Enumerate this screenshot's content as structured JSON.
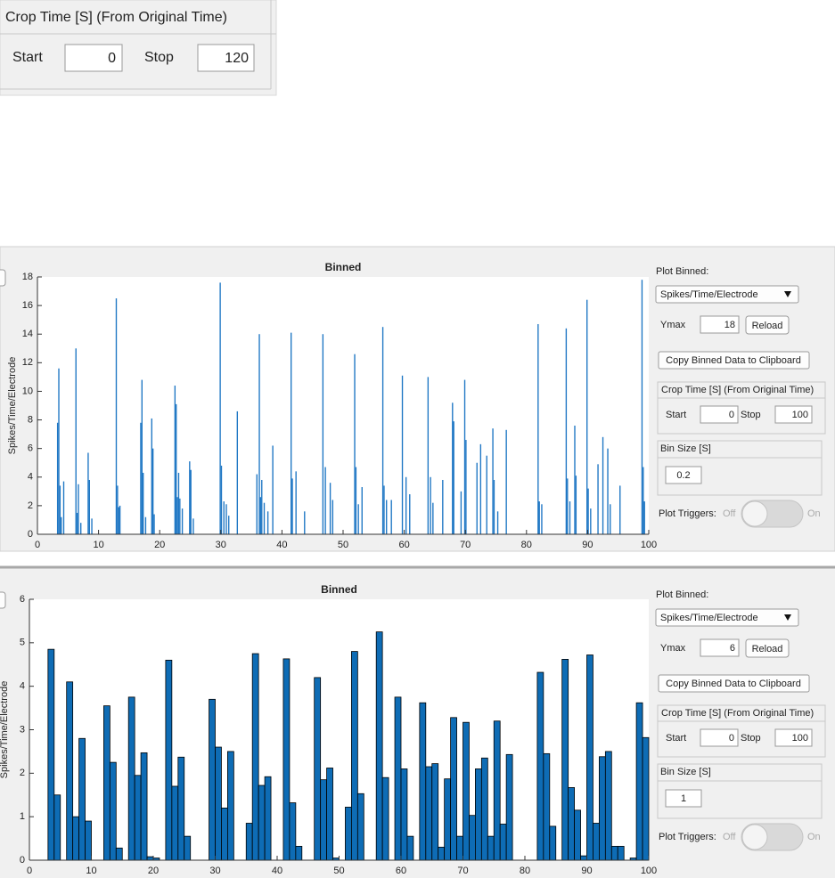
{
  "crop_panel": {
    "title": "Crop Time [S] (From Original Time)",
    "start_label": "Start",
    "start": 0,
    "stop_label": "Stop",
    "stop": 120
  },
  "chart_data": [
    {
      "type": "bar",
      "title": "Binned",
      "y_label": "Spikes/Time/Electrode",
      "color": "#1f77c4",
      "edgecolor": null,
      "x": [
        3.2,
        3.4,
        3.6,
        3.8,
        4.2,
        6.2,
        6.4,
        6.6,
        7.0,
        8.2,
        8.4,
        8.8,
        12.8,
        13.0,
        13.2,
        13.4,
        16.8,
        17.0,
        17.2,
        17.6,
        18.6,
        18.8,
        19.0,
        22.4,
        22.6,
        22.8,
        23.0,
        23.2,
        23.6,
        24.8,
        25.0,
        25.4,
        29.8,
        30.0,
        30.4,
        30.8,
        31.2,
        32.6,
        35.8,
        36.2,
        36.4,
        36.6,
        37.0,
        37.6,
        38.4,
        41.4,
        41.6,
        42.2,
        43.6,
        46.6,
        47.0,
        47.8,
        48.2,
        51.8,
        52.0,
        52.4,
        53.0,
        56.4,
        56.6,
        57.0,
        57.8,
        59.6,
        60.2,
        60.8,
        63.8,
        64.2,
        64.6,
        66.2,
        67.8,
        68.0,
        69.2,
        69.8,
        70.0,
        71.8,
        72.4,
        73.4,
        74.4,
        74.6,
        75.2,
        76.6,
        81.8,
        82.0,
        82.4,
        86.4,
        86.6,
        87.0,
        87.8,
        88.0,
        89.8,
        90.0,
        90.4,
        91.6,
        92.4,
        93.2,
        93.6,
        95.2,
        98.8,
        99.0,
        99.2
      ],
      "values": [
        7.8,
        11.6,
        3.4,
        1.2,
        3.7,
        13,
        1.5,
        3.5,
        0.8,
        5.7,
        3.8,
        1.1,
        16.5,
        3.4,
        1.9,
        2,
        7.8,
        10.8,
        4.3,
        1.2,
        8.1,
        6,
        1.4,
        10.4,
        9.1,
        2.6,
        4.3,
        2.5,
        1.8,
        5.1,
        4.5,
        1.1,
        17.6,
        4.8,
        2.3,
        2.1,
        1.3,
        8.6,
        4.2,
        14,
        2.6,
        3.8,
        2.2,
        1.6,
        6.2,
        14.1,
        3.9,
        4.4,
        1.6,
        14,
        4.7,
        3.6,
        2.4,
        12.6,
        4.7,
        2.1,
        3.3,
        14.5,
        3.4,
        2.4,
        2.4,
        11.1,
        4,
        2.8,
        11,
        4,
        2.2,
        3.8,
        9.2,
        7.9,
        3,
        10.8,
        6.6,
        5,
        6.3,
        5.5,
        7.4,
        3.8,
        1.6,
        7.3,
        14.7,
        2.3,
        2.1,
        14.4,
        3.9,
        2.3,
        7.6,
        4.1,
        16.4,
        3.2,
        1.8,
        4.9,
        6.8,
        6,
        2.1,
        3.4,
        17.8,
        4.7,
        2.3
      ],
      "xlim": [
        0,
        100
      ],
      "ylim": [
        0,
        18
      ],
      "xticks": [
        0,
        10,
        20,
        30,
        40,
        50,
        60,
        70,
        80,
        90,
        100
      ],
      "yticks": [
        0,
        2,
        4,
        6,
        8,
        10,
        12,
        14,
        16,
        18
      ]
    },
    {
      "type": "bar",
      "title": "Binned",
      "y_label": "Spikes/Time/Electrode",
      "color": "#0e6cb5",
      "edgecolor": "#000000",
      "x": [
        3,
        4,
        6,
        7,
        8,
        9,
        12,
        13,
        14,
        16,
        17,
        18,
        19,
        20,
        22,
        23,
        24,
        25,
        29,
        30,
        31,
        32,
        35,
        36,
        37,
        38,
        41,
        42,
        43,
        46,
        47,
        48,
        49,
        51,
        52,
        53,
        56,
        57,
        59,
        60,
        61,
        63,
        64,
        65,
        66,
        67,
        68,
        69,
        70,
        71,
        72,
        73,
        74,
        75,
        76,
        77,
        82,
        83,
        84,
        86,
        87,
        88,
        89,
        90,
        91,
        92,
        93,
        94,
        95,
        97,
        98,
        99
      ],
      "values": [
        4.85,
        1.5,
        4.1,
        1,
        2.8,
        0.9,
        3.55,
        2.25,
        0.28,
        3.75,
        1.95,
        2.47,
        0.08,
        0.05,
        4.6,
        1.7,
        2.37,
        0.55,
        3.7,
        2.6,
        1.2,
        2.5,
        0.85,
        4.75,
        1.72,
        1.92,
        4.63,
        1.32,
        0.32,
        4.2,
        1.85,
        2.12,
        0.05,
        1.22,
        4.8,
        1.53,
        5.25,
        1.9,
        3.75,
        2.1,
        0.55,
        3.62,
        2.15,
        2.22,
        0.3,
        1.87,
        3.28,
        0.55,
        3.17,
        1.03,
        2.1,
        2.35,
        0.55,
        3.2,
        0.83,
        2.43,
        4.32,
        2.45,
        0.78,
        4.62,
        1.67,
        1.15,
        0.1,
        4.72,
        0.85,
        2.38,
        2.5,
        0.32,
        0.32,
        0.05,
        3.62,
        2.82
      ],
      "xlim": [
        0,
        100
      ],
      "ylim": [
        0,
        6
      ],
      "xticks": [
        0,
        10,
        20,
        30,
        40,
        50,
        60,
        70,
        80,
        90,
        100
      ],
      "yticks": [
        0,
        1,
        2,
        3,
        4,
        5,
        6
      ]
    }
  ],
  "controls": [
    {
      "plot_binned_label": "Plot Binned:",
      "dropdown": "Spikes/Time/Electrode",
      "ymax_label": "Ymax",
      "ymax": 18,
      "reload": "Reload",
      "copy": "Copy Binned Data to Clipboard",
      "crop_title": "Crop Time [S] (From Original Time)",
      "start_label": "Start",
      "start": 0,
      "stop_label": "Stop",
      "stop": 100,
      "bin_title": "Bin Size [S]",
      "bin_size": 0.2,
      "triggers_label": "Plot Triggers:",
      "off": "Off",
      "on": "On"
    },
    {
      "plot_binned_label": "Plot Binned:",
      "dropdown": "Spikes/Time/Electrode",
      "ymax_label": "Ymax",
      "ymax": 6,
      "reload": "Reload",
      "copy": "Copy Binned Data to Clipboard",
      "crop_title": "Crop Time [S] (From Original Time)",
      "start_label": "Start",
      "start": 0,
      "stop_label": "Stop",
      "stop": 100,
      "bin_title": "Bin Size [S]",
      "bin_size": 1,
      "triggers_label": "Plot Triggers:",
      "off": "Off",
      "on": "On"
    }
  ]
}
